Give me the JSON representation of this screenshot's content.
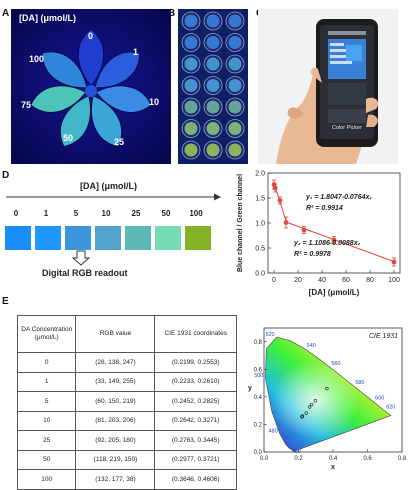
{
  "panels": {
    "a": "A",
    "b": "B",
    "c": "C",
    "d": "D",
    "e": "E"
  },
  "panel_a": {
    "title": "[DA] (μmol/L)",
    "petals": [
      {
        "label": "0",
        "color": "#1f3ecf"
      },
      {
        "label": "1",
        "color": "#2b5fe0"
      },
      {
        "label": "10",
        "color": "#3a8be3"
      },
      {
        "label": "25",
        "color": "#3aa6d8"
      },
      {
        "label": "50",
        "color": "#41b7c8"
      },
      {
        "label": "75",
        "color": "#4cc4b8"
      },
      {
        "label": "100",
        "color": "#2f86d8"
      }
    ]
  },
  "panel_c": {
    "app_button": "Color Picker"
  },
  "panel_d": {
    "title": "[DA] (μmol/L)",
    "concentrations": [
      "0",
      "1",
      "5",
      "10",
      "25",
      "50",
      "100"
    ],
    "swatch_colors": [
      "#1c8ef7",
      "#2195fa",
      "#3c96db",
      "#51a3cd",
      "#5cb9b4",
      "#76dbb4",
      "#84b126"
    ],
    "readout": "Digital RGB readout"
  },
  "chart_data": [
    {
      "type": "scatter",
      "title": "",
      "xlabel": "[DA] (μmol/L)",
      "ylabel": "Blue channel / Green channel",
      "xlim": [
        -5,
        105
      ],
      "ylim": [
        0,
        2.0
      ],
      "xticks": [
        0,
        20,
        40,
        60,
        80,
        100
      ],
      "yticks": [
        0.0,
        0.5,
        1.0,
        1.5,
        2.0
      ],
      "points": [
        {
          "x": 0,
          "y": 1.77,
          "err": 0.09
        },
        {
          "x": 1,
          "y": 1.7,
          "err": 0.08
        },
        {
          "x": 5,
          "y": 1.45,
          "err": 0.07
        },
        {
          "x": 10,
          "y": 1.01,
          "err": 0.11
        },
        {
          "x": 25,
          "y": 0.86,
          "err": 0.07
        },
        {
          "x": 50,
          "y": 0.66,
          "err": 0.07
        },
        {
          "x": 100,
          "y": 0.22,
          "err": 0.08
        }
      ],
      "fits": [
        {
          "x0": 0,
          "x1": 10,
          "intercept": 1.8047,
          "slope": -0.0764
        },
        {
          "x0": 10,
          "x1": 100,
          "intercept": 1.1086,
          "slope": -0.0088
        }
      ],
      "annotations": {
        "eq1": "y₁ = 1.8047-0.0764x₁",
        "r1": "R² = 0.9914",
        "eq2": "y₂ = 1.1086-0.0088x₂",
        "r2": "R² = 0.9978"
      },
      "color": "#e0473d"
    },
    {
      "type": "scatter",
      "title": "CIE 1931",
      "xlabel": "x",
      "ylabel": "y",
      "xlim": [
        0,
        0.8
      ],
      "ylim": [
        0,
        0.9
      ],
      "xticks": [
        0.0,
        0.2,
        0.4,
        0.6,
        0.8
      ],
      "yticks": [
        0.0,
        0.2,
        0.4,
        0.6,
        0.8
      ],
      "wavelength_labels": [
        {
          "label": "460",
          "x": 0.144,
          "y": 0.03
        },
        {
          "label": "480",
          "x": 0.091,
          "y": 0.133
        },
        {
          "label": "500",
          "x": 0.008,
          "y": 0.538
        },
        {
          "label": "520",
          "x": 0.074,
          "y": 0.834
        },
        {
          "label": "540",
          "x": 0.23,
          "y": 0.754
        },
        {
          "label": "560",
          "x": 0.373,
          "y": 0.624
        },
        {
          "label": "580",
          "x": 0.512,
          "y": 0.487
        },
        {
          "label": "600",
          "x": 0.627,
          "y": 0.372
        },
        {
          "label": "620",
          "x": 0.691,
          "y": 0.308
        }
      ],
      "points": [
        {
          "x": 0.2199,
          "y": 0.2553
        },
        {
          "x": 0.2233,
          "y": 0.261
        },
        {
          "x": 0.2452,
          "y": 0.2825
        },
        {
          "x": 0.2642,
          "y": 0.3271
        },
        {
          "x": 0.2763,
          "y": 0.3445
        },
        {
          "x": 0.2977,
          "y": 0.3721
        },
        {
          "x": 0.3646,
          "y": 0.4606
        }
      ]
    }
  ],
  "table": {
    "headers": [
      "DA Concentration (μmol/L)",
      "RGB value",
      "CIE 1931 coordinates"
    ],
    "rows": [
      [
        "0",
        "(28, 138, 247)",
        "(0.2199, 0.2553)"
      ],
      [
        "1",
        "(33, 149, 255)",
        "(0.2233, 0.2610)"
      ],
      [
        "5",
        "(60, 150, 219)",
        "(0.2452, 0.2825)"
      ],
      [
        "10",
        "(81, 203, 206)",
        "(0.2642, 0.3271)"
      ],
      [
        "25",
        "(92, 205, 180)",
        "(0.2763, 0.3445)"
      ],
      [
        "50",
        "(118, 219, 150)",
        "(0.2977, 0.3721)"
      ],
      [
        "100",
        "(132, 177, 38)",
        "(0.3646, 0.4606)"
      ]
    ]
  }
}
